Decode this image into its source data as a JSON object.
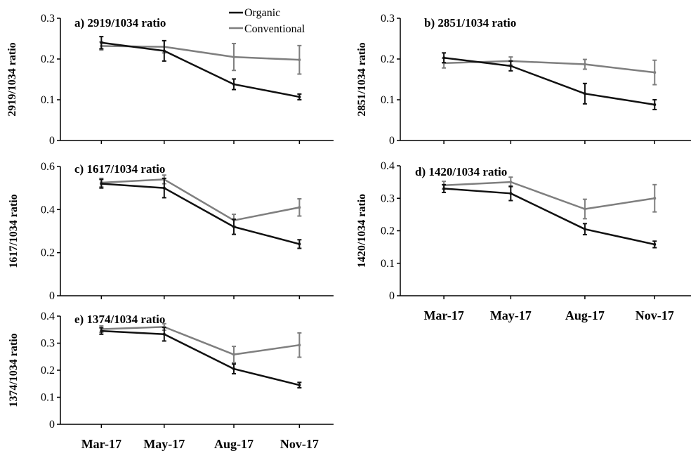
{
  "legend": {
    "items": [
      {
        "label": "Organic",
        "color": "#111111"
      },
      {
        "label": "Conventional",
        "color": "#7f7f7f"
      }
    ]
  },
  "chart_data": [
    {
      "type": "line",
      "title": "a) 2919/1034 ratio",
      "ylabel": "2919/1034 ratio",
      "categories": [
        "Mar-17",
        "May-17",
        "Aug-17",
        "Nov-17"
      ],
      "ylim": [
        0,
        0.3
      ],
      "yticks": [
        "0",
        "0.1",
        "0.2",
        "0.3"
      ],
      "series": [
        {
          "name": "Organic",
          "values": [
            0.24,
            0.22,
            0.138,
            0.107
          ],
          "errors": [
            0.015,
            0.025,
            0.013,
            0.007
          ]
        },
        {
          "name": "Conventional",
          "values": [
            0.232,
            0.23,
            0.205,
            0.198
          ],
          "errors": [
            0.01,
            0.015,
            0.033,
            0.035
          ]
        }
      ]
    },
    {
      "type": "line",
      "title": "b) 2851/1034 ratio",
      "ylabel": "2851/1034 ratio",
      "categories": [
        "Mar-17",
        "May-17",
        "Aug-17",
        "Nov-17"
      ],
      "ylim": [
        0,
        0.3
      ],
      "yticks": [
        "0",
        "0.1",
        "0.2",
        "0.3"
      ],
      "series": [
        {
          "name": "Organic",
          "values": [
            0.203,
            0.183,
            0.115,
            0.088
          ],
          "errors": [
            0.012,
            0.012,
            0.025,
            0.012
          ]
        },
        {
          "name": "Conventional",
          "values": [
            0.19,
            0.195,
            0.187,
            0.167
          ],
          "errors": [
            0.012,
            0.01,
            0.012,
            0.03
          ]
        }
      ]
    },
    {
      "type": "line",
      "title": "c) 1617/1034 ratio",
      "ylabel": "1617/1034 ratio",
      "categories": [
        "Mar-17",
        "May-17",
        "Aug-17",
        "Nov-17"
      ],
      "ylim": [
        0,
        0.6
      ],
      "yticks": [
        "0",
        "0.2",
        "0.4",
        "0.6"
      ],
      "series": [
        {
          "name": "Organic",
          "values": [
            0.52,
            0.5,
            0.32,
            0.24
          ],
          "errors": [
            0.02,
            0.045,
            0.035,
            0.02
          ]
        },
        {
          "name": "Conventional",
          "values": [
            0.525,
            0.54,
            0.35,
            0.41
          ],
          "errors": [
            0.02,
            0.02,
            0.028,
            0.04
          ]
        }
      ]
    },
    {
      "type": "line",
      "title": "d) 1420/1034 ratio",
      "ylabel": "1420/1034 ratio",
      "categories": [
        "Mar-17",
        "May-17",
        "Aug-17",
        "Nov-17"
      ],
      "ylim": [
        0,
        0.4
      ],
      "yticks": [
        "0",
        "0.1",
        "0.2",
        "0.3",
        "0.4"
      ],
      "series": [
        {
          "name": "Organic",
          "values": [
            0.33,
            0.315,
            0.205,
            0.158
          ],
          "errors": [
            0.012,
            0.022,
            0.017,
            0.01
          ]
        },
        {
          "name": "Conventional",
          "values": [
            0.34,
            0.35,
            0.267,
            0.3
          ],
          "errors": [
            0.012,
            0.015,
            0.03,
            0.042
          ]
        }
      ]
    },
    {
      "type": "line",
      "title": "e) 1374/1034 ratio",
      "ylabel": "1374/1034 ratio",
      "categories": [
        "Mar-17",
        "May-17",
        "Aug-17",
        "Nov-17"
      ],
      "ylim": [
        0,
        0.4
      ],
      "yticks": [
        "0",
        "0.1",
        "0.2",
        "0.3",
        "0.4"
      ],
      "series": [
        {
          "name": "Organic",
          "values": [
            0.345,
            0.333,
            0.205,
            0.145
          ],
          "errors": [
            0.012,
            0.025,
            0.018,
            0.01
          ]
        },
        {
          "name": "Conventional",
          "values": [
            0.352,
            0.36,
            0.258,
            0.293
          ],
          "errors": [
            0.012,
            0.012,
            0.03,
            0.045
          ]
        }
      ]
    }
  ]
}
